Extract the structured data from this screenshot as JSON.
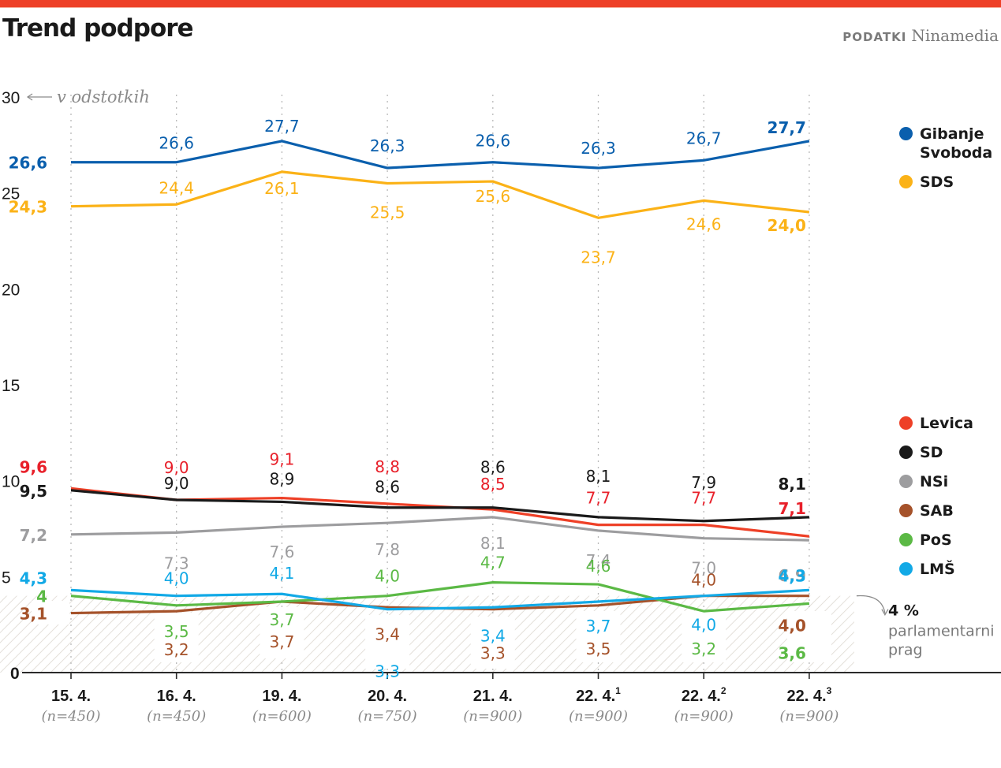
{
  "header": {
    "title": "Trend podpore",
    "source_label": "PODATKI",
    "source_name": "Ninamedia"
  },
  "chart_data": {
    "type": "line",
    "title": "Trend podpore",
    "ylabel": "v odstotkih",
    "xlabel": "",
    "ylim": [
      0,
      30
    ],
    "yticks": [
      0,
      5,
      10,
      15,
      20,
      25,
      30
    ],
    "grid": "vertical dotted lines at each poll date",
    "x": [
      {
        "label": "15. 4.",
        "sup": "",
        "sample": "(n=450)"
      },
      {
        "label": "16. 4.",
        "sup": "",
        "sample": "(n=450)"
      },
      {
        "label": "19. 4.",
        "sup": "",
        "sample": "(n=600)"
      },
      {
        "label": "20. 4.",
        "sup": "",
        "sample": "(n=750)"
      },
      {
        "label": "21. 4.",
        "sup": "",
        "sample": "(n=900)"
      },
      {
        "label": "22. 4.",
        "sup": "1",
        "sample": "(n=900)"
      },
      {
        "label": "22. 4.",
        "sup": "2",
        "sample": "(n=900)"
      },
      {
        "label": "22. 4.",
        "sup": "3",
        "sample": "(n=900)"
      }
    ],
    "series": [
      {
        "name": "Gibanje Svoboda",
        "color": "#0a5fad",
        "values": [
          26.6,
          26.6,
          27.7,
          26.3,
          26.6,
          26.3,
          26.7,
          27.7
        ],
        "labels": [
          "26,6",
          "26,6",
          "27,7",
          "26,3",
          "26,6",
          "26,3",
          "26,7",
          "27,7"
        ]
      },
      {
        "name": "SDS",
        "color": "#fbb217",
        "values": [
          24.3,
          24.4,
          26.1,
          25.5,
          25.6,
          23.7,
          24.6,
          24.0
        ],
        "labels": [
          "24,3",
          "24,4",
          "26,1",
          "25,5",
          "25,6",
          "23,7",
          "24,6",
          "24,0"
        ]
      },
      {
        "name": "Levica",
        "color": "#ee4027",
        "label_color": "#e8202a",
        "values": [
          9.6,
          9.0,
          9.1,
          8.8,
          8.5,
          7.7,
          7.7,
          7.1
        ],
        "labels": [
          "9,6",
          "9,0",
          "9,1",
          "8,8",
          "8,5",
          "7,7",
          "7,7",
          "7,1"
        ]
      },
      {
        "name": "SD",
        "color": "#1a1a1a",
        "values": [
          9.5,
          9.0,
          8.9,
          8.6,
          8.6,
          8.1,
          7.9,
          8.1
        ],
        "labels": [
          "9,5",
          "9,0",
          "8,9",
          "8,6",
          "8,6",
          "8,1",
          "7,9",
          "8,1"
        ]
      },
      {
        "name": "NSi",
        "color": "#9d9d9f",
        "values": [
          7.2,
          7.3,
          7.6,
          7.8,
          8.1,
          7.4,
          7.0,
          6.9
        ],
        "labels": [
          "7,2",
          "7,3",
          "7,6",
          "7,8",
          "8,1",
          "7,4",
          "7,0",
          "6,9"
        ]
      },
      {
        "name": "SAB",
        "color": "#a5522a",
        "values": [
          3.1,
          3.2,
          3.7,
          3.4,
          3.3,
          3.5,
          4.0,
          4.0
        ],
        "labels": [
          "3,1",
          "3,2",
          "3,7",
          "3,4",
          "3,3",
          "3,5",
          "4,0",
          "4,0"
        ]
      },
      {
        "name": "PoS",
        "color": "#5bb945",
        "values": [
          4.0,
          3.5,
          3.7,
          4.0,
          4.7,
          4.6,
          3.2,
          3.6
        ],
        "labels": [
          "4",
          "3,5",
          "3,7",
          "4,0",
          "4,7",
          "4,6",
          "3,2",
          "3,6"
        ]
      },
      {
        "name": "LMŠ",
        "color": "#12a9e6",
        "values": [
          4.3,
          4.0,
          4.1,
          3.3,
          3.4,
          3.7,
          4.0,
          4.3
        ],
        "labels": [
          "4,3",
          "4,0",
          "4,1",
          "3,3",
          "3,4",
          "3,7",
          "4,0",
          "4,3"
        ]
      }
    ],
    "threshold": {
      "value": 4,
      "label": "4 %",
      "description_line1": "parlamentarni",
      "description_line2": "prag"
    },
    "legend_top": [
      "Gibanje Svoboda",
      "SDS"
    ],
    "legend_bottom": [
      "Levica",
      "SD",
      "NSi",
      "SAB",
      "PoS",
      "LMŠ"
    ],
    "legend_placement": "right"
  },
  "legend": {
    "top": [
      {
        "line1": "Gibanje",
        "line2": "Svoboda",
        "color": "#0a5fad"
      },
      {
        "line1": "SDS",
        "line2": "",
        "color": "#fbb217"
      }
    ],
    "bottom": [
      {
        "label": "Levica",
        "color": "#ee4027"
      },
      {
        "label": "SD",
        "color": "#1a1a1a"
      },
      {
        "label": "NSi",
        "color": "#9d9d9f"
      },
      {
        "label": "SAB",
        "color": "#a5522a"
      },
      {
        "label": "PoS",
        "color": "#5bb945"
      },
      {
        "label": "LMŠ",
        "color": "#12a9e6"
      }
    ]
  }
}
